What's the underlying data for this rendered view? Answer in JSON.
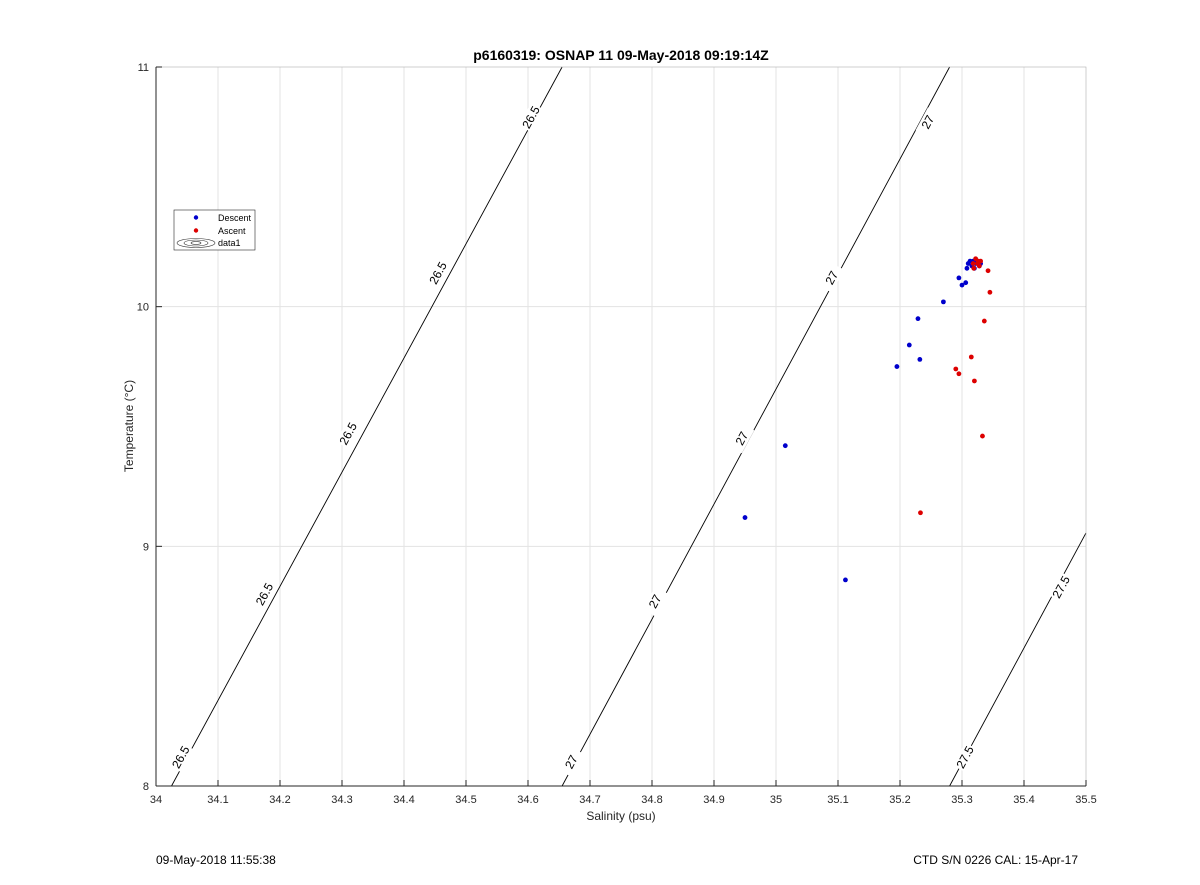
{
  "footer": {
    "left": "09-May-2018 11:55:38",
    "right": "CTD S/N 0226  CAL: 15-Apr-17"
  },
  "chart_data": {
    "type": "scatter",
    "title": "p6160319: OSNAP 11 09-May-2018 09:19:14Z",
    "xlabel": "Salinity (psu)",
    "ylabel": "Temperature (°C)",
    "xlim": [
      34,
      35.5
    ],
    "ylim": [
      8,
      11
    ],
    "x_ticks": [
      34,
      34.1,
      34.2,
      34.3,
      34.4,
      34.5,
      34.6,
      34.7,
      34.8,
      34.9,
      35,
      35.1,
      35.2,
      35.3,
      35.4,
      35.5
    ],
    "y_ticks": [
      8,
      9,
      10,
      11
    ],
    "grid": true,
    "legend_position": "upper-left",
    "legend": [
      "Descent",
      "Ascent",
      "data1"
    ],
    "series": [
      {
        "name": "Descent",
        "color": "#0000cc",
        "points": [
          [
            34.95,
            9.12
          ],
          [
            35.015,
            9.42
          ],
          [
            35.112,
            8.86
          ],
          [
            35.195,
            9.75
          ],
          [
            35.215,
            9.84
          ],
          [
            35.232,
            9.78
          ],
          [
            35.229,
            9.95
          ],
          [
            35.27,
            10.02
          ],
          [
            35.295,
            10.12
          ],
          [
            35.3,
            10.09
          ],
          [
            35.306,
            10.1
          ],
          [
            35.308,
            10.16
          ],
          [
            35.31,
            10.18
          ],
          [
            35.313,
            10.19
          ],
          [
            35.316,
            10.17
          ],
          [
            35.318,
            10.19
          ],
          [
            35.32,
            10.16
          ],
          [
            35.322,
            10.18
          ],
          [
            35.325,
            10.19
          ],
          [
            35.328,
            10.17
          ],
          [
            35.33,
            10.18
          ]
        ]
      },
      {
        "name": "Ascent",
        "color": "#dd0000",
        "points": [
          [
            35.233,
            9.14
          ],
          [
            35.29,
            9.74
          ],
          [
            35.295,
            9.72
          ],
          [
            35.315,
            9.79
          ],
          [
            35.32,
            9.69
          ],
          [
            35.333,
            9.46
          ],
          [
            35.336,
            9.94
          ],
          [
            35.345,
            10.06
          ],
          [
            35.342,
            10.15
          ],
          [
            35.318,
            10.18
          ],
          [
            35.322,
            10.2
          ],
          [
            35.325,
            10.18
          ],
          [
            35.328,
            10.17
          ],
          [
            35.33,
            10.19
          ],
          [
            35.319,
            10.16
          ],
          [
            35.326,
            10.19
          ]
        ]
      }
    ],
    "isopycnals": [
      {
        "level": "26.5",
        "x_at_ymin": 34.025,
        "x_at_ymax": 34.655,
        "labels": [
          [
            34.04,
            8.12
          ],
          [
            34.175,
            8.8
          ],
          [
            34.31,
            9.47
          ],
          [
            34.455,
            10.14
          ],
          [
            34.605,
            10.79
          ]
        ]
      },
      {
        "level": "27",
        "x_at_ymin": 34.655,
        "x_at_ymax": 35.28,
        "labels": [
          [
            34.67,
            8.1
          ],
          [
            34.805,
            8.77
          ],
          [
            34.945,
            9.45
          ],
          [
            35.09,
            10.12
          ],
          [
            35.245,
            10.77
          ]
        ]
      },
      {
        "level": "27.5",
        "x_at_ymin": 35.28,
        "x_at_ymax": 35.905,
        "labels": [
          [
            35.305,
            8.12
          ],
          [
            35.46,
            8.83
          ]
        ]
      }
    ]
  }
}
